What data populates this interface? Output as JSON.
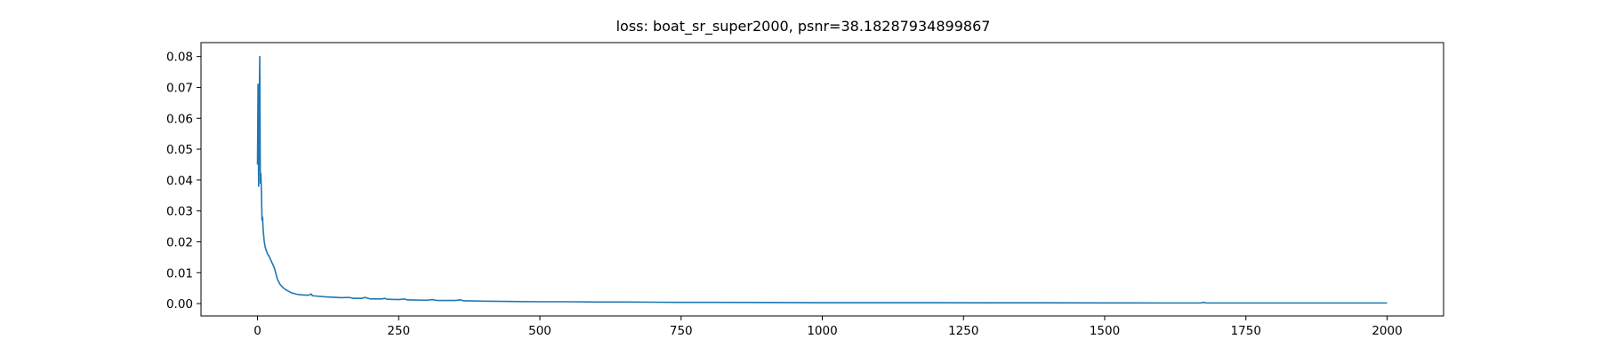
{
  "chart_data": {
    "type": "line",
    "title": "loss: boat_sr_super2000, psnr=38.18287934899867",
    "xlabel": "",
    "ylabel": "",
    "xlim": [
      -100,
      2100
    ],
    "ylim": [
      -0.004,
      0.0845
    ],
    "grid": false,
    "legend": "none",
    "x_ticks": [
      0,
      250,
      500,
      750,
      1000,
      1250,
      1500,
      1750,
      2000
    ],
    "x_tick_labels": [
      "0",
      "250",
      "500",
      "750",
      "1000",
      "1250",
      "1500",
      "1750",
      "2000"
    ],
    "y_ticks": [
      0.0,
      0.01,
      0.02,
      0.03,
      0.04,
      0.05,
      0.06,
      0.07,
      0.08
    ],
    "y_tick_labels": [
      "0.00",
      "0.01",
      "0.02",
      "0.03",
      "0.04",
      "0.05",
      "0.06",
      "0.07",
      "0.08"
    ],
    "line_color": "#1f77b4",
    "series": [
      {
        "x": [
          0,
          1,
          2,
          3,
          4,
          5,
          6,
          7,
          8,
          9,
          10,
          12,
          14,
          16,
          18,
          20,
          25,
          30,
          35,
          40,
          45,
          50,
          55,
          60,
          70,
          80,
          90,
          95,
          97,
          100,
          120,
          150,
          160,
          165,
          170,
          185,
          190,
          200,
          220,
          225,
          230,
          250,
          260,
          265,
          270,
          300,
          310,
          315,
          320,
          350,
          360,
          365,
          370,
          400,
          450,
          500,
          550,
          600,
          650,
          700,
          750,
          800,
          900,
          1000,
          1100,
          1200,
          1300,
          1400,
          1500,
          1600,
          1670,
          1675,
          1680,
          1700,
          1800,
          1900,
          2000
        ],
        "y": [
          0.045,
          0.071,
          0.038,
          0.062,
          0.08,
          0.039,
          0.042,
          0.036,
          0.027,
          0.028,
          0.024,
          0.02,
          0.018,
          0.017,
          0.016,
          0.0155,
          0.0135,
          0.0115,
          0.008,
          0.0062,
          0.0052,
          0.0045,
          0.004,
          0.0035,
          0.003,
          0.0028,
          0.0027,
          0.0031,
          0.0026,
          0.0025,
          0.0022,
          0.0019,
          0.002,
          0.0019,
          0.0017,
          0.0017,
          0.002,
          0.0015,
          0.0015,
          0.0017,
          0.0014,
          0.0013,
          0.0015,
          0.0012,
          0.0012,
          0.0011,
          0.0013,
          0.0011,
          0.001,
          0.001,
          0.0012,
          0.0009,
          0.0009,
          0.0008,
          0.0007,
          0.0006,
          0.0006,
          0.0005,
          0.0005,
          0.00045,
          0.0004,
          0.0004,
          0.00035,
          0.0003,
          0.0003,
          0.00028,
          0.00025,
          0.00025,
          0.00022,
          0.0002,
          0.0002,
          0.0004,
          0.0002,
          0.0002,
          0.0002,
          0.0002,
          0.0002
        ]
      }
    ]
  }
}
